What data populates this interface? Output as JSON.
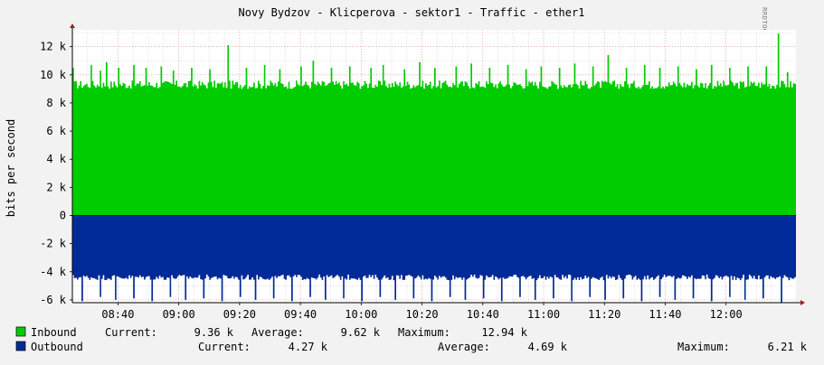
{
  "chart_data": {
    "type": "area",
    "title": "Novy Bydzov - Klicperova - sektor1 - Traffic - ether1",
    "ylabel": "bits per second",
    "watermark": "RRDTOOL / TOBI OETIKER",
    "x_ticks": [
      "08:40",
      "09:00",
      "09:20",
      "09:40",
      "10:00",
      "10:20",
      "10:40",
      "11:00",
      "11:20",
      "11:40",
      "12:00"
    ],
    "y_ticks": [
      {
        "value": 12000,
        "label": "12 k"
      },
      {
        "value": 10000,
        "label": "10 k"
      },
      {
        "value": 8000,
        "label": "8 k"
      },
      {
        "value": 6000,
        "label": "6 k"
      },
      {
        "value": 4000,
        "label": "4 k"
      },
      {
        "value": 2000,
        "label": "2 k"
      },
      {
        "value": 0,
        "label": "0"
      },
      {
        "value": -2000,
        "label": "-2 k"
      },
      {
        "value": -4000,
        "label": "-4 k"
      },
      {
        "value": -6000,
        "label": "-6 k"
      }
    ],
    "ylim": [
      -6200,
      13200
    ],
    "x_start": "08:25",
    "x_end": "12:23",
    "grid": true,
    "series": [
      {
        "name": "Inbound",
        "color": "#00cc00",
        "baseline": 9300,
        "jitter": 300,
        "spikes": [
          {
            "t": "08:25",
            "v": 10500
          },
          {
            "t": "08:31",
            "v": 10700
          },
          {
            "t": "08:34",
            "v": 10300
          },
          {
            "t": "08:36",
            "v": 10900
          },
          {
            "t": "08:40",
            "v": 10500
          },
          {
            "t": "08:45",
            "v": 10700
          },
          {
            "t": "08:49",
            "v": 10500
          },
          {
            "t": "08:54",
            "v": 10600
          },
          {
            "t": "08:58",
            "v": 10300
          },
          {
            "t": "09:04",
            "v": 10500
          },
          {
            "t": "09:10",
            "v": 10400
          },
          {
            "t": "09:16",
            "v": 12100
          },
          {
            "t": "09:22",
            "v": 10500
          },
          {
            "t": "09:28",
            "v": 10700
          },
          {
            "t": "09:33",
            "v": 10400
          },
          {
            "t": "09:40",
            "v": 10600
          },
          {
            "t": "09:44",
            "v": 11000
          },
          {
            "t": "09:50",
            "v": 10500
          },
          {
            "t": "09:56",
            "v": 10600
          },
          {
            "t": "10:03",
            "v": 10500
          },
          {
            "t": "10:07",
            "v": 10700
          },
          {
            "t": "10:14",
            "v": 10400
          },
          {
            "t": "10:19",
            "v": 10900
          },
          {
            "t": "10:24",
            "v": 10500
          },
          {
            "t": "10:31",
            "v": 10600
          },
          {
            "t": "10:36",
            "v": 10800
          },
          {
            "t": "10:42",
            "v": 10500
          },
          {
            "t": "10:48",
            "v": 10700
          },
          {
            "t": "10:54",
            "v": 10400
          },
          {
            "t": "10:59",
            "v": 10600
          },
          {
            "t": "11:05",
            "v": 10500
          },
          {
            "t": "11:10",
            "v": 10800
          },
          {
            "t": "11:16",
            "v": 10600
          },
          {
            "t": "11:21",
            "v": 11400
          },
          {
            "t": "11:27",
            "v": 10500
          },
          {
            "t": "11:33",
            "v": 10700
          },
          {
            "t": "11:38",
            "v": 10500
          },
          {
            "t": "11:44",
            "v": 10600
          },
          {
            "t": "11:50",
            "v": 10400
          },
          {
            "t": "11:55",
            "v": 10700
          },
          {
            "t": "12:01",
            "v": 10500
          },
          {
            "t": "12:07",
            "v": 10600
          },
          {
            "t": "12:13",
            "v": 10600
          },
          {
            "t": "12:17",
            "v": 12940
          },
          {
            "t": "12:20",
            "v": 10200
          }
        ],
        "current_label": "Current:",
        "current": "9.36 k",
        "average_label": "Average:",
        "average": "9.62 k",
        "maximum_label": "Maximum:",
        "maximum": "12.94 k"
      },
      {
        "name": "Outbound",
        "color": "#002a97",
        "baseline": -4400,
        "jitter": 200,
        "spikes": [
          {
            "t": "08:28",
            "v": -6100
          },
          {
            "t": "08:34",
            "v": -5800
          },
          {
            "t": "08:39",
            "v": -6000
          },
          {
            "t": "08:45",
            "v": -5900
          },
          {
            "t": "08:51",
            "v": -6100
          },
          {
            "t": "08:57",
            "v": -5800
          },
          {
            "t": "09:02",
            "v": -6000
          },
          {
            "t": "09:08",
            "v": -5900
          },
          {
            "t": "09:14",
            "v": -6100
          },
          {
            "t": "09:20",
            "v": -5800
          },
          {
            "t": "09:25",
            "v": -6000
          },
          {
            "t": "09:31",
            "v": -5900
          },
          {
            "t": "09:37",
            "v": -6100
          },
          {
            "t": "09:43",
            "v": -5800
          },
          {
            "t": "09:48",
            "v": -6000
          },
          {
            "t": "09:54",
            "v": -5900
          },
          {
            "t": "10:00",
            "v": -6100
          },
          {
            "t": "10:06",
            "v": -5800
          },
          {
            "t": "10:11",
            "v": -6000
          },
          {
            "t": "10:17",
            "v": -5900
          },
          {
            "t": "10:23",
            "v": -6100
          },
          {
            "t": "10:29",
            "v": -5800
          },
          {
            "t": "10:34",
            "v": -6000
          },
          {
            "t": "10:40",
            "v": -5900
          },
          {
            "t": "10:46",
            "v": -6100
          },
          {
            "t": "10:52",
            "v": -5800
          },
          {
            "t": "10:57",
            "v": -6000
          },
          {
            "t": "11:03",
            "v": -5900
          },
          {
            "t": "11:09",
            "v": -6100
          },
          {
            "t": "11:15",
            "v": -5800
          },
          {
            "t": "11:20",
            "v": -6000
          },
          {
            "t": "11:26",
            "v": -5900
          },
          {
            "t": "11:32",
            "v": -6100
          },
          {
            "t": "11:38",
            "v": -5800
          },
          {
            "t": "11:43",
            "v": -6000
          },
          {
            "t": "11:49",
            "v": -5900
          },
          {
            "t": "11:55",
            "v": -6100
          },
          {
            "t": "12:01",
            "v": -5800
          },
          {
            "t": "12:06",
            "v": -6000
          },
          {
            "t": "12:12",
            "v": -5900
          },
          {
            "t": "12:18",
            "v": -6210
          }
        ],
        "current_label": "Current:",
        "current": "4.27 k",
        "average_label": "Average:",
        "average": "4.69 k",
        "maximum_label": "Maximum:",
        "maximum": "6.21 k"
      }
    ]
  }
}
